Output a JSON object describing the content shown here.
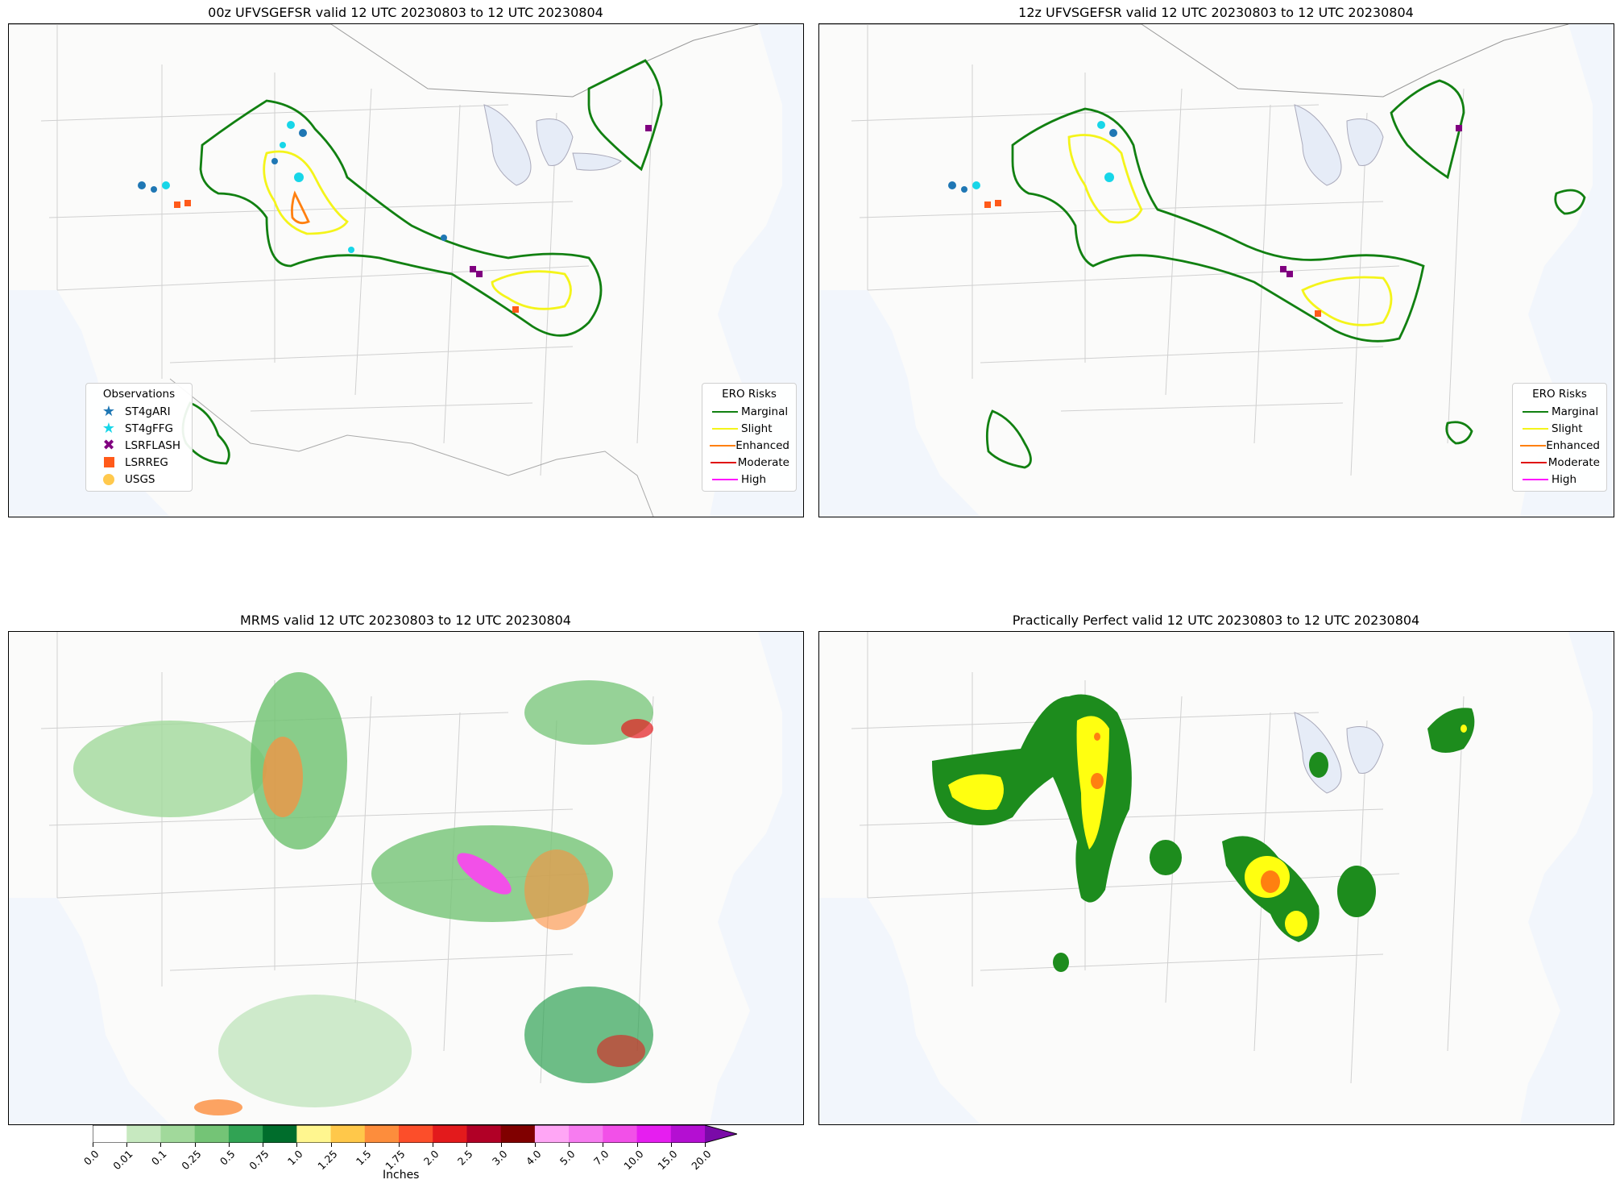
{
  "panels": {
    "p1": {
      "title": "00z UFVSGEFSR valid 12 UTC 20230803 to 12 UTC 20230804"
    },
    "p2": {
      "title": "12z UFVSGEFSR valid 12 UTC 20230803 to 12 UTC 20230804"
    },
    "p3": {
      "title": "MRMS valid 12 UTC 20230803 to 12 UTC 20230804"
    },
    "p4": {
      "title": "Practically Perfect valid 12 UTC 20230803 to 12 UTC 20230804"
    }
  },
  "observations_legend": {
    "title": "Observations",
    "items": [
      {
        "label": "ST4gARI",
        "color": "#1f77b4",
        "icon": "star-icon"
      },
      {
        "label": "ST4gFFG",
        "color": "#17d6e8",
        "icon": "star-icon"
      },
      {
        "label": "LSRFLASH",
        "color": "#800080",
        "icon": "x-icon"
      },
      {
        "label": "LSRREG",
        "color": "#ff5a1a",
        "icon": "square-icon"
      },
      {
        "label": "USGS",
        "color": "#ffc94d",
        "icon": "circle-icon"
      }
    ]
  },
  "ero_legend": {
    "title": "ERO Risks",
    "items": [
      {
        "label": "Marginal",
        "color": "#118011"
      },
      {
        "label": "Slight",
        "color": "#f4f41a"
      },
      {
        "label": "Enhanced",
        "color": "#ff8010"
      },
      {
        "label": "Moderate",
        "color": "#e01010"
      },
      {
        "label": "High",
        "color": "#ff10ff"
      }
    ]
  },
  "colorbar": {
    "label": "Inches",
    "ticks": [
      "0.0",
      "0.01",
      "0.1",
      "0.25",
      "0.5",
      "0.75",
      "1.0",
      "1.25",
      "1.5",
      "1.75",
      "2.0",
      "2.5",
      "3.0",
      "4.0",
      "5.0",
      "7.0",
      "10.0",
      "15.0",
      "20.0"
    ],
    "colors": [
      "#ffffff",
      "#c7e9c0",
      "#a1d99b",
      "#74c476",
      "#31a354",
      "#006d2c",
      "#fff68f",
      "#ffc84a",
      "#fd8d3c",
      "#fc4e2a",
      "#e31a1c",
      "#b10026",
      "#800000",
      "#ffa6f5",
      "#f77cf0",
      "#f250e8",
      "#e61ef0",
      "#b40fd2"
    ],
    "extend_color": "#7a0aa8"
  }
}
